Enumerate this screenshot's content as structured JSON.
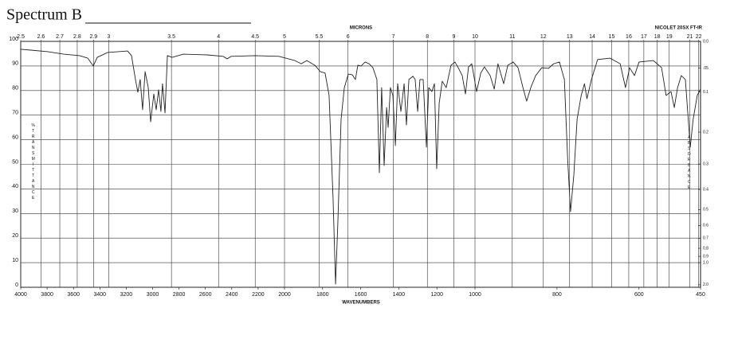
{
  "chart_data": {
    "type": "line",
    "title": "Spectrum B",
    "annotation": "NICOLET 20SX FT-IR",
    "xlabel": "WAVENUMBERS",
    "x2label": "MICRONS",
    "ylabel": "%TRANSMITTANCE",
    "y2label": "ABSORBANCE",
    "xlim": [
      4000,
      450
    ],
    "xticks": [
      4000,
      3800,
      3600,
      3400,
      3200,
      3000,
      2800,
      2600,
      2400,
      2200,
      2000,
      1800,
      1600,
      1400,
      1200,
      1000,
      800,
      600,
      450
    ],
    "x2ticks": [
      2.5,
      2.6,
      2.7,
      2.8,
      2.9,
      3,
      3.5,
      4,
      4.5,
      5,
      5.5,
      6,
      7,
      8,
      9,
      10,
      11,
      12,
      13,
      14,
      15,
      16,
      17,
      18,
      19,
      21,
      22
    ],
    "ylim": [
      0,
      100
    ],
    "yticks": [
      0,
      10,
      20,
      30,
      40,
      50,
      60,
      70,
      80,
      90,
      100
    ],
    "y2ticks": [
      {
        "value": 0,
        "label": "0.0"
      },
      {
        "value": 0.05,
        "label": ".05"
      },
      0.1,
      0.2,
      0.3,
      0.4,
      0.5,
      0.6,
      0.7,
      0.8,
      0.9,
      {
        "value": 1,
        "label": "1.0"
      },
      {
        "value": 2,
        "label": "2.0"
      }
    ],
    "grid": true,
    "x": [
      4000,
      3915,
      3795,
      3674,
      3553,
      3492,
      3450,
      3420,
      3341,
      3190,
      3160,
      3130,
      3112,
      3094,
      3076,
      3057,
      3033,
      3015,
      2991,
      2973,
      2955,
      2937,
      2925,
      2906,
      2888,
      2852,
      2767,
      2586,
      2465,
      2435,
      2405,
      2224,
      2042,
      1946,
      1912,
      1883,
      1841,
      1812,
      1787,
      1766,
      1745,
      1732,
      1720,
      1703,
      1686,
      1665,
      1644,
      1628,
      1615,
      1598,
      1577,
      1556,
      1536,
      1515,
      1502,
      1490,
      1477,
      1464,
      1456,
      1444,
      1431,
      1418,
      1406,
      1389,
      1372,
      1360,
      1347,
      1326,
      1314,
      1301,
      1289,
      1272,
      1255,
      1243,
      1226,
      1213,
      1201,
      1188,
      1172,
      1151,
      1126,
      1105,
      1088,
      1067,
      1050,
      1034,
      1017,
      996,
      986,
      977,
      963,
      953,
      944,
      930,
      920,
      907,
      895,
      883,
      874,
      864,
      852,
      837,
      821,
      808,
      794,
      782,
      774,
      767,
      759,
      751,
      741,
      733,
      727,
      716,
      701,
      671,
      646,
      633,
      623,
      611,
      600,
      565,
      545,
      534,
      522,
      514,
      506,
      497,
      487,
      475,
      468,
      458,
      450
    ],
    "series": [
      {
        "color": "#222222",
        "values": [
          96.8,
          96.4,
          95.8,
          94.8,
          94.2,
          93.2,
          90.0,
          93.5,
          95.5,
          96.1,
          94.2,
          84.5,
          79.3,
          84.5,
          72.2,
          87.7,
          81.2,
          67.3,
          78.6,
          72.2,
          80.3,
          71.5,
          82.8,
          70.9,
          94.2,
          93.5,
          94.8,
          94.5,
          93.9,
          92.9,
          93.9,
          94.2,
          93.9,
          92.2,
          90.9,
          92.2,
          90.3,
          87.7,
          87.1,
          78.0,
          35.9,
          1.3,
          26.2,
          68.3,
          81.2,
          86.7,
          86.4,
          84.5,
          90.3,
          90.0,
          91.6,
          90.9,
          89.3,
          84.5,
          46.6,
          81.2,
          49.5,
          73.1,
          65.0,
          81.2,
          78.0,
          57.6,
          82.8,
          71.5,
          82.8,
          66.0,
          84.5,
          85.8,
          84.5,
          71.5,
          84.5,
          84.5,
          57.0,
          81.2,
          79.6,
          82.8,
          48.2,
          74.8,
          83.8,
          81.2,
          90.3,
          91.6,
          89.3,
          86.1,
          78.6,
          89.6,
          90.9,
          79.6,
          87.1,
          89.6,
          86.1,
          80.6,
          90.9,
          82.8,
          90.3,
          91.6,
          89.3,
          81.2,
          75.7,
          81.2,
          86.1,
          89.3,
          89.0,
          90.9,
          91.6,
          84.5,
          52.1,
          30.7,
          45.6,
          68.3,
          78.0,
          82.8,
          76.7,
          84.5,
          92.6,
          93.2,
          90.9,
          81.2,
          89.3,
          86.1,
          91.6,
          92.2,
          89.3,
          78.0,
          79.6,
          73.1,
          81.2,
          86.1,
          84.5,
          57.0,
          68.3,
          78.0,
          80.6
        ]
      }
    ]
  }
}
